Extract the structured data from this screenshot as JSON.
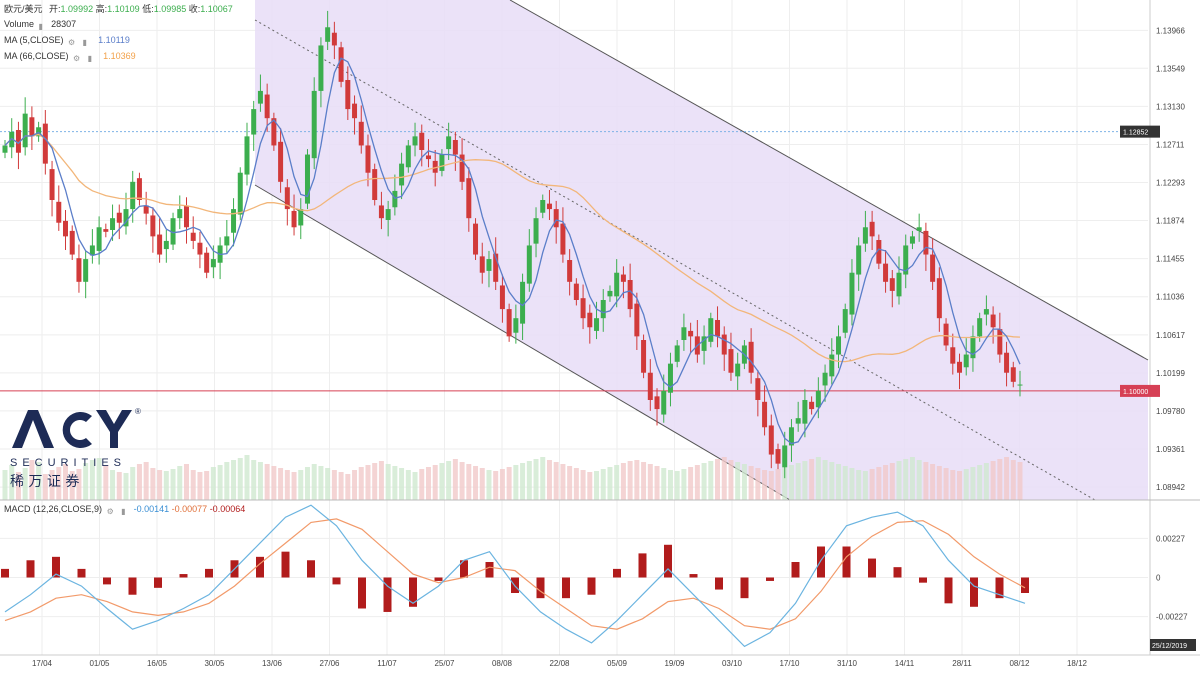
{
  "header": {
    "symbol": "欧元/美元",
    "open_label": "开:",
    "open_value": "1.09992",
    "high_label": "高:",
    "high_value": "1.10109",
    "low_label": "低:",
    "low_value": "1.09985",
    "close_label": "收:",
    "close_value": "1.10067",
    "volume_label": "Volume",
    "volume_value": "28307",
    "ma5_label": "MA (5,CLOSE)",
    "ma5_value": "1.10119",
    "ma66_label": "MA (66,CLOSE)",
    "ma66_value": "1.10369",
    "macd_label": "MACD (12,26,CLOSE,9)",
    "macd_value1": "-0.00141",
    "macd_value2": "-0.00077",
    "macd_value3": "-0.00064"
  },
  "logo": {
    "brand": "ACY",
    "registered": "®",
    "sub": "SECURITIES",
    "chinese": "稀 万 证 券"
  },
  "colors": {
    "up": "#3cae4e",
    "down": "#d13a3a",
    "ma5": "#5b7ec9",
    "ma66": "#f2b67a",
    "channel": "#e8ddf7",
    "macd_line": "#6bb4e0",
    "signal_line": "#f29a6a",
    "hist": "#b11c1c",
    "price_badge": "#d64055",
    "level_badge": "#333333"
  },
  "chart_data": [
    {
      "type": "candlestick",
      "title": "欧元/美元",
      "x_tick_labels": [
        "17/04",
        "01/05",
        "16/05",
        "30/05",
        "13/06",
        "27/06",
        "11/07",
        "25/07",
        "08/08",
        "22/08",
        "05/09",
        "19/09",
        "03/10",
        "17/10",
        "31/10",
        "14/11",
        "28/11",
        "08/12",
        "18/12"
      ],
      "y_tick_labels": [
        "1.13966",
        "1.13549",
        "1.13130",
        "1.12711",
        "1.12293",
        "1.11874",
        "1.11455",
        "1.11036",
        "1.10617",
        "1.10199",
        "1.09780",
        "1.09361",
        "1.08942"
      ],
      "ylim": [
        1.088,
        1.143
      ],
      "current_price_label": "1.10000",
      "current_price": 1.1,
      "level_label": "1.12852",
      "level": 1.12852,
      "closes": [
        1.127,
        1.1285,
        1.1262,
        1.1305,
        1.128,
        1.129,
        1.125,
        1.121,
        1.1185,
        1.117,
        1.115,
        1.112,
        1.1145,
        1.116,
        1.118,
        1.1175,
        1.119,
        1.1185,
        1.12,
        1.123,
        1.121,
        1.1195,
        1.117,
        1.115,
        1.1165,
        1.119,
        1.12,
        1.118,
        1.1165,
        1.115,
        1.113,
        1.1145,
        1.116,
        1.117,
        1.12,
        1.124,
        1.128,
        1.131,
        1.133,
        1.13,
        1.127,
        1.123,
        1.12,
        1.118,
        1.12,
        1.126,
        1.133,
        1.138,
        1.14,
        1.138,
        1.134,
        1.131,
        1.13,
        1.127,
        1.124,
        1.121,
        1.119,
        1.12,
        1.122,
        1.125,
        1.127,
        1.128,
        1.1265,
        1.1255,
        1.124,
        1.126,
        1.128,
        1.126,
        1.123,
        1.119,
        1.115,
        1.113,
        1.1145,
        1.112,
        1.109,
        1.106,
        1.108,
        1.112,
        1.116,
        1.119,
        1.121,
        1.12,
        1.118,
        1.115,
        1.112,
        1.11,
        1.108,
        1.107,
        1.108,
        1.11,
        1.111,
        1.113,
        1.112,
        1.109,
        1.106,
        1.102,
        1.099,
        1.098,
        1.1,
        1.103,
        1.105,
        1.107,
        1.106,
        1.104,
        1.106,
        1.108,
        1.106,
        1.104,
        1.102,
        1.103,
        1.105,
        1.102,
        1.099,
        1.096,
        1.093,
        1.092,
        1.094,
        1.096,
        1.097,
        1.099,
        1.098,
        1.1,
        1.102,
        1.104,
        1.106,
        1.109,
        1.113,
        1.116,
        1.118,
        1.117,
        1.114,
        1.112,
        1.111,
        1.113,
        1.116,
        1.117,
        1.118,
        1.115,
        1.112,
        1.108,
        1.105,
        1.103,
        1.102,
        1.104,
        1.106,
        1.108,
        1.109,
        1.107,
        1.104,
        1.102,
        1.101,
        1.1007
      ]
    },
    {
      "type": "bar",
      "title": "Volume",
      "values_note": "relative volume bars",
      "values": [
        30,
        35,
        28,
        32,
        40,
        38,
        26,
        30,
        33,
        36,
        29,
        31,
        37,
        40,
        42,
        35,
        30,
        28,
        27,
        33,
        36,
        38,
        32,
        30,
        29,
        31,
        34,
        36,
        30,
        28,
        29,
        33,
        35,
        38,
        40,
        42,
        45,
        40,
        38,
        36,
        34,
        32,
        30,
        28,
        30,
        33,
        36,
        34,
        32,
        30,
        28,
        26,
        30,
        33,
        35,
        37,
        39,
        36,
        34,
        32,
        30,
        28,
        31,
        33,
        35,
        37,
        39,
        41,
        38,
        36,
        34,
        32,
        30,
        29,
        31,
        33,
        35,
        37,
        39,
        41,
        43,
        40,
        38,
        36,
        34,
        32,
        30,
        28,
        29,
        31,
        33,
        35,
        37,
        39,
        40,
        38,
        36,
        34,
        32,
        30,
        29,
        31,
        33,
        35,
        37,
        39,
        41,
        43,
        40,
        38,
        36,
        34,
        32,
        30,
        29,
        31,
        33,
        35,
        37,
        39,
        41,
        43,
        40,
        38,
        36,
        34,
        32,
        30,
        29,
        31,
        33,
        35,
        37,
        39,
        41,
        43,
        40,
        38,
        36,
        34,
        32,
        30,
        29,
        31,
        33,
        35,
        37,
        39,
        41,
        43,
        40,
        38
      ]
    },
    {
      "type": "line",
      "title": "MACD (12,26,CLOSE,9)",
      "y_tick_labels": [
        "0.00227",
        "0",
        "-0.00227"
      ],
      "ylim": [
        -0.0045,
        0.0045
      ],
      "date_badge": "25/12/2019",
      "series": [
        {
          "values": [
            -0.002,
            -0.001,
            0.0002,
            -0.0005,
            -0.0018,
            -0.003,
            -0.0025,
            -0.0018,
            -0.001,
            0.0005,
            0.002,
            0.0035,
            0.0042,
            0.003,
            0.001,
            -0.0005,
            -0.0015,
            -0.0005,
            0.001,
            0.0015,
            -0.0005,
            -0.002,
            -0.003,
            -0.0038,
            -0.0025,
            -0.001,
            0.0005,
            -0.001,
            -0.0025,
            -0.004,
            -0.0032,
            -0.0015,
            0.001,
            0.003,
            0.0035,
            0.0038,
            0.003,
            0.001,
            -0.0005,
            -0.001,
            -0.0015
          ]
        },
        {
          "values": [
            -0.0025,
            -0.002,
            -0.0012,
            -0.001,
            -0.0014,
            -0.002,
            -0.0022,
            -0.002,
            -0.0015,
            -0.0005,
            0.0008,
            0.002,
            0.0032,
            0.0034,
            0.0028,
            0.0015,
            0.0002,
            -0.0003,
            0.0,
            0.0006,
            0.0004,
            -0.0008,
            -0.0018,
            -0.0028,
            -0.003,
            -0.0024,
            -0.0014,
            -0.0012,
            -0.0018,
            -0.0028,
            -0.003,
            -0.0024,
            -0.0008,
            0.0012,
            0.0024,
            0.0032,
            0.0033,
            0.0025,
            0.0012,
            0.0002,
            -0.0006
          ]
        }
      ],
      "histogram": [
        0.0005,
        0.001,
        0.0012,
        0.0005,
        -0.0004,
        -0.001,
        -0.0006,
        0.0002,
        0.0005,
        0.001,
        0.0012,
        0.0015,
        0.001,
        -0.0004,
        -0.0018,
        -0.002,
        -0.0017,
        -0.0002,
        0.001,
        0.0009,
        -0.0009,
        -0.0012,
        -0.0012,
        -0.001,
        0.0005,
        0.0014,
        0.0019,
        0.0002,
        -0.0007,
        -0.0012,
        -0.0002,
        0.0009,
        0.0018,
        0.0018,
        0.0011,
        0.0006,
        -0.0003,
        -0.0015,
        -0.0017,
        -0.0012,
        -0.0009
      ]
    }
  ]
}
